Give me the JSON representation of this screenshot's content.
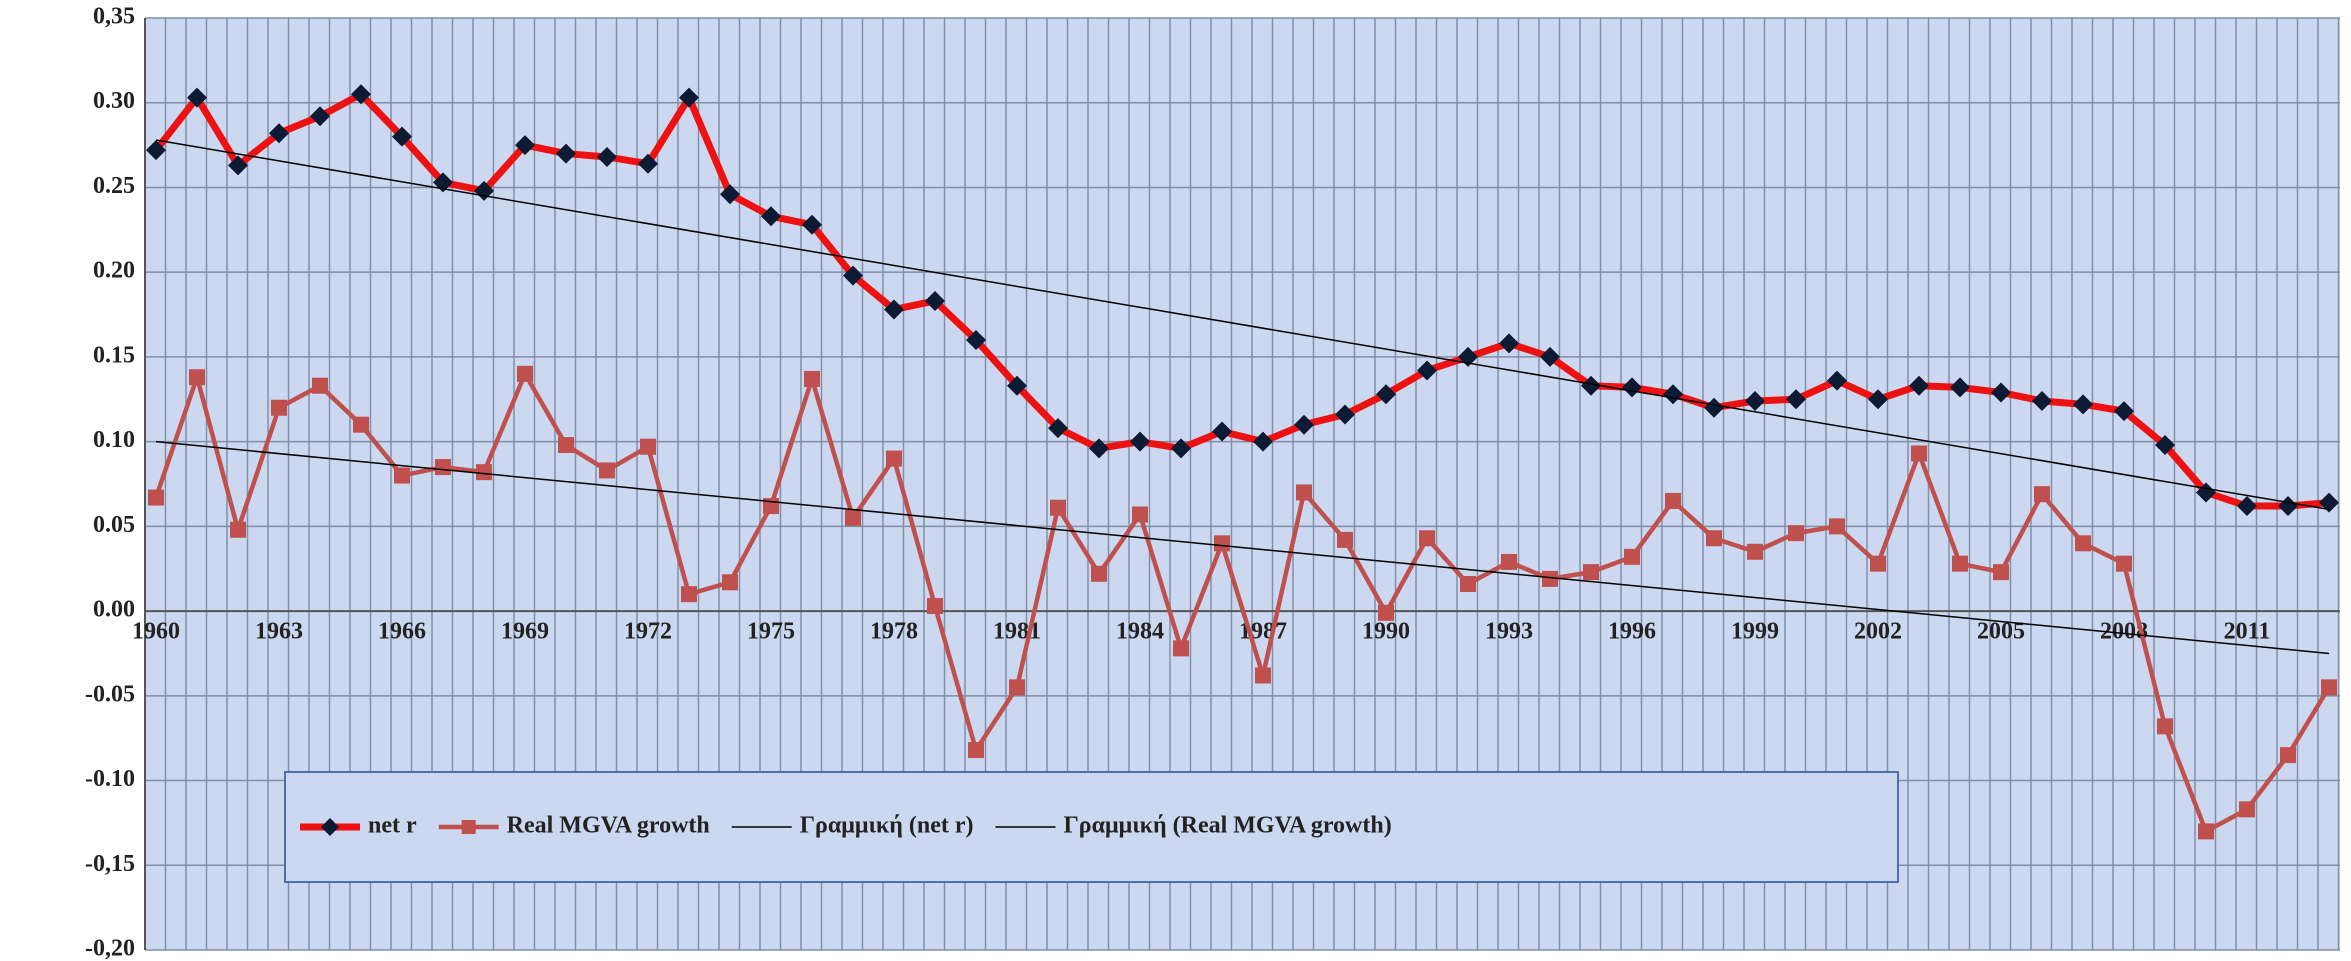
{
  "chart_data": {
    "type": "line",
    "categories": [
      "1960",
      null,
      null,
      "1963",
      null,
      null,
      "1966",
      null,
      null,
      "1969",
      null,
      null,
      "1972",
      null,
      null,
      "1975",
      null,
      null,
      "1978",
      null,
      null,
      "1981",
      null,
      null,
      "1984",
      null,
      null,
      "1987",
      null,
      null,
      "1990",
      null,
      null,
      "1993",
      null,
      null,
      "1996",
      null,
      null,
      "1999",
      null,
      null,
      "2002",
      null,
      null,
      "2005",
      null,
      null,
      "2008",
      null,
      null,
      "2011",
      null,
      null
    ],
    "series": [
      {
        "name": "net r",
        "color": "#ee1111",
        "marker": "diamond",
        "values": [
          0.272,
          0.303,
          0.263,
          0.282,
          0.292,
          0.305,
          0.28,
          0.253,
          0.248,
          0.275,
          0.27,
          0.268,
          0.264,
          0.303,
          0.246,
          0.233,
          0.228,
          0.198,
          0.178,
          0.183,
          0.16,
          0.133,
          0.108,
          0.096,
          0.1,
          0.096,
          0.106,
          0.1,
          0.11,
          0.116,
          0.128,
          0.142,
          0.15,
          0.158,
          0.15,
          0.133,
          0.132,
          0.128,
          0.12,
          0.124,
          0.125,
          0.136,
          0.125,
          0.133,
          0.132,
          0.129,
          0.124,
          0.122,
          0.118,
          0.098,
          0.07,
          0.062,
          0.062,
          0.064
        ]
      },
      {
        "name": "Real MGVA growth",
        "color": "#c0504d",
        "marker": "square",
        "values": [
          0.067,
          0.138,
          0.048,
          0.12,
          0.133,
          0.11,
          0.08,
          0.085,
          0.082,
          0.14,
          0.098,
          0.083,
          0.097,
          0.01,
          0.017,
          0.062,
          0.137,
          0.055,
          0.09,
          0.003,
          -0.082,
          -0.045,
          0.061,
          0.022,
          0.057,
          -0.022,
          0.04,
          -0.038,
          0.07,
          0.042,
          -0.001,
          0.043,
          0.016,
          0.029,
          0.019,
          0.023,
          0.032,
          0.065,
          0.043,
          0.035,
          0.046,
          0.05,
          0.028,
          0.093,
          0.028,
          0.023,
          0.069,
          0.04,
          0.028,
          -0.068,
          -0.13,
          -0.117,
          -0.085,
          -0.045
        ]
      },
      {
        "name": "Γραμμική (net r)",
        "color": "#000000",
        "trend_ends": [
          0.278,
          0.06
        ]
      },
      {
        "name": "Γραμμική (Real MGVA growth)",
        "color": "#000000",
        "trend_ends": [
          0.1,
          -0.025
        ]
      }
    ],
    "ylim": [
      -0.2,
      0.35
    ],
    "yticks": [
      {
        "value": -0.2,
        "label": "-0,20"
      },
      {
        "value": -0.15,
        "label": "-0,15"
      },
      {
        "value": -0.1,
        "label": "-0.10"
      },
      {
        "value": -0.05,
        "label": "-0.05"
      },
      {
        "value": 0,
        "label": "0.00"
      },
      {
        "value": 0.05,
        "label": "0.05"
      },
      {
        "value": 0.1,
        "label": "0.10"
      },
      {
        "value": 0.15,
        "label": "0.15"
      },
      {
        "value": 0.2,
        "label": "0.20"
      },
      {
        "value": 0.25,
        "label": "0.25"
      },
      {
        "value": 0.3,
        "label": "0.30"
      },
      {
        "value": 0.35,
        "label": "0,35"
      }
    ],
    "grid": true
  }
}
